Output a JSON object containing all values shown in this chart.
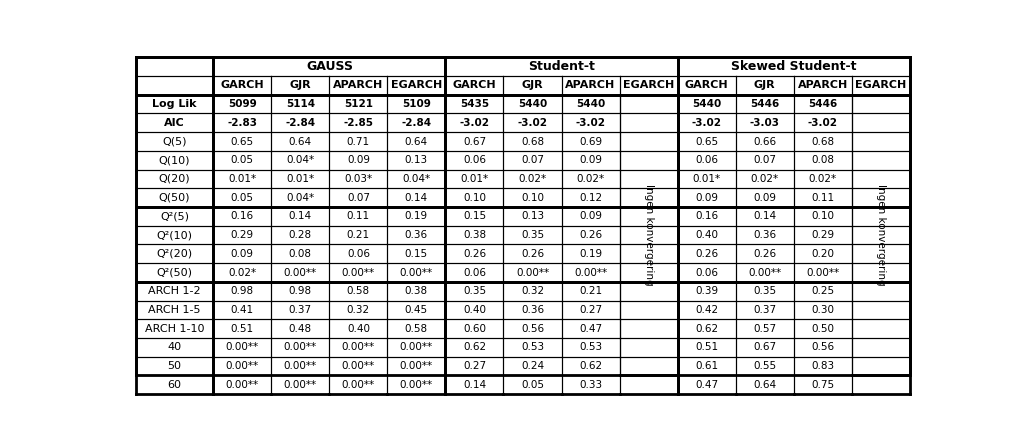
{
  "row_labels": [
    "Log Lik",
    "AIC",
    "Q(5)",
    "Q(10)",
    "Q(20)",
    "Q(50)",
    "Q²(5)",
    "Q²(10)",
    "Q²(20)",
    "Q²(50)",
    "ARCH 1-2",
    "ARCH 1-5",
    "ARCH 1-10",
    "40",
    "50",
    "60"
  ],
  "col_groups": [
    "GAUSS",
    "Student-t",
    "Skewed Student-t"
  ],
  "col_subheaders": [
    "GARCH",
    "GJR",
    "APARCH",
    "EGARCH"
  ],
  "data": {
    "GAUSS": {
      "GARCH": [
        "5099",
        "-2.83",
        "0.65",
        "0.05",
        "0.01*",
        "0.05",
        "0.16",
        "0.29",
        "0.09",
        "0.02*",
        "0.98",
        "0.41",
        "0.51",
        "0.00**",
        "0.00**",
        "0.00**"
      ],
      "GJR": [
        "5114",
        "-2.84",
        "0.64",
        "0.04*",
        "0.01*",
        "0.04*",
        "0.14",
        "0.28",
        "0.08",
        "0.00**",
        "0.98",
        "0.37",
        "0.48",
        "0.00**",
        "0.00**",
        "0.00**"
      ],
      "APARCH": [
        "5121",
        "-2.85",
        "0.71",
        "0.09",
        "0.03*",
        "0.07",
        "0.11",
        "0.21",
        "0.06",
        "0.00**",
        "0.58",
        "0.32",
        "0.40",
        "0.00**",
        "0.00**",
        "0.00**"
      ],
      "EGARCH": [
        "5109",
        "-2.84",
        "0.64",
        "0.13",
        "0.04*",
        "0.14",
        "0.19",
        "0.36",
        "0.15",
        "0.00**",
        "0.38",
        "0.45",
        "0.58",
        "0.00**",
        "0.00**",
        "0.00**"
      ]
    },
    "Student-t": {
      "GARCH": [
        "5435",
        "-3.02",
        "0.67",
        "0.06",
        "0.01*",
        "0.10",
        "0.15",
        "0.38",
        "0.26",
        "0.06",
        "0.35",
        "0.40",
        "0.60",
        "0.62",
        "0.27",
        "0.14"
      ],
      "GJR": [
        "5440",
        "-3.02",
        "0.68",
        "0.07",
        "0.02*",
        "0.10",
        "0.13",
        "0.35",
        "0.26",
        "0.00**",
        "0.32",
        "0.36",
        "0.56",
        "0.53",
        "0.24",
        "0.05"
      ],
      "APARCH": [
        "5440",
        "-3.02",
        "0.69",
        "0.09",
        "0.02*",
        "0.12",
        "0.09",
        "0.26",
        "0.19",
        "0.00**",
        "0.21",
        "0.27",
        "0.47",
        "0.53",
        "0.62",
        "0.33"
      ],
      "EGARCH": [
        "",
        "",
        "",
        "",
        "",
        "",
        "",
        "",
        "",
        "",
        "",
        "",
        "",
        "",
        "",
        ""
      ]
    },
    "Skewed Student-t": {
      "GARCH": [
        "5440",
        "-3.02",
        "0.65",
        "0.06",
        "0.01*",
        "0.09",
        "0.16",
        "0.40",
        "0.26",
        "0.06",
        "0.39",
        "0.42",
        "0.62",
        "0.51",
        "0.61",
        "0.47"
      ],
      "GJR": [
        "5446",
        "-3.03",
        "0.66",
        "0.07",
        "0.02*",
        "0.09",
        "0.14",
        "0.36",
        "0.26",
        "0.00**",
        "0.35",
        "0.37",
        "0.57",
        "0.67",
        "0.55",
        "0.64"
      ],
      "APARCH": [
        "5446",
        "-3.02",
        "0.68",
        "0.08",
        "0.02*",
        "0.11",
        "0.10",
        "0.29",
        "0.20",
        "0.00**",
        "0.25",
        "0.30",
        "0.50",
        "0.56",
        "0.83",
        "0.75"
      ],
      "EGARCH": [
        "",
        "",
        "",
        "",
        "",
        "",
        "",
        "",
        "",
        "",
        "",
        "",
        "",
        "",
        "",
        ""
      ]
    }
  },
  "ingen_konvergering": "Ingen konvergering",
  "thin_lw": 0.8,
  "thick_lw": 2.0
}
